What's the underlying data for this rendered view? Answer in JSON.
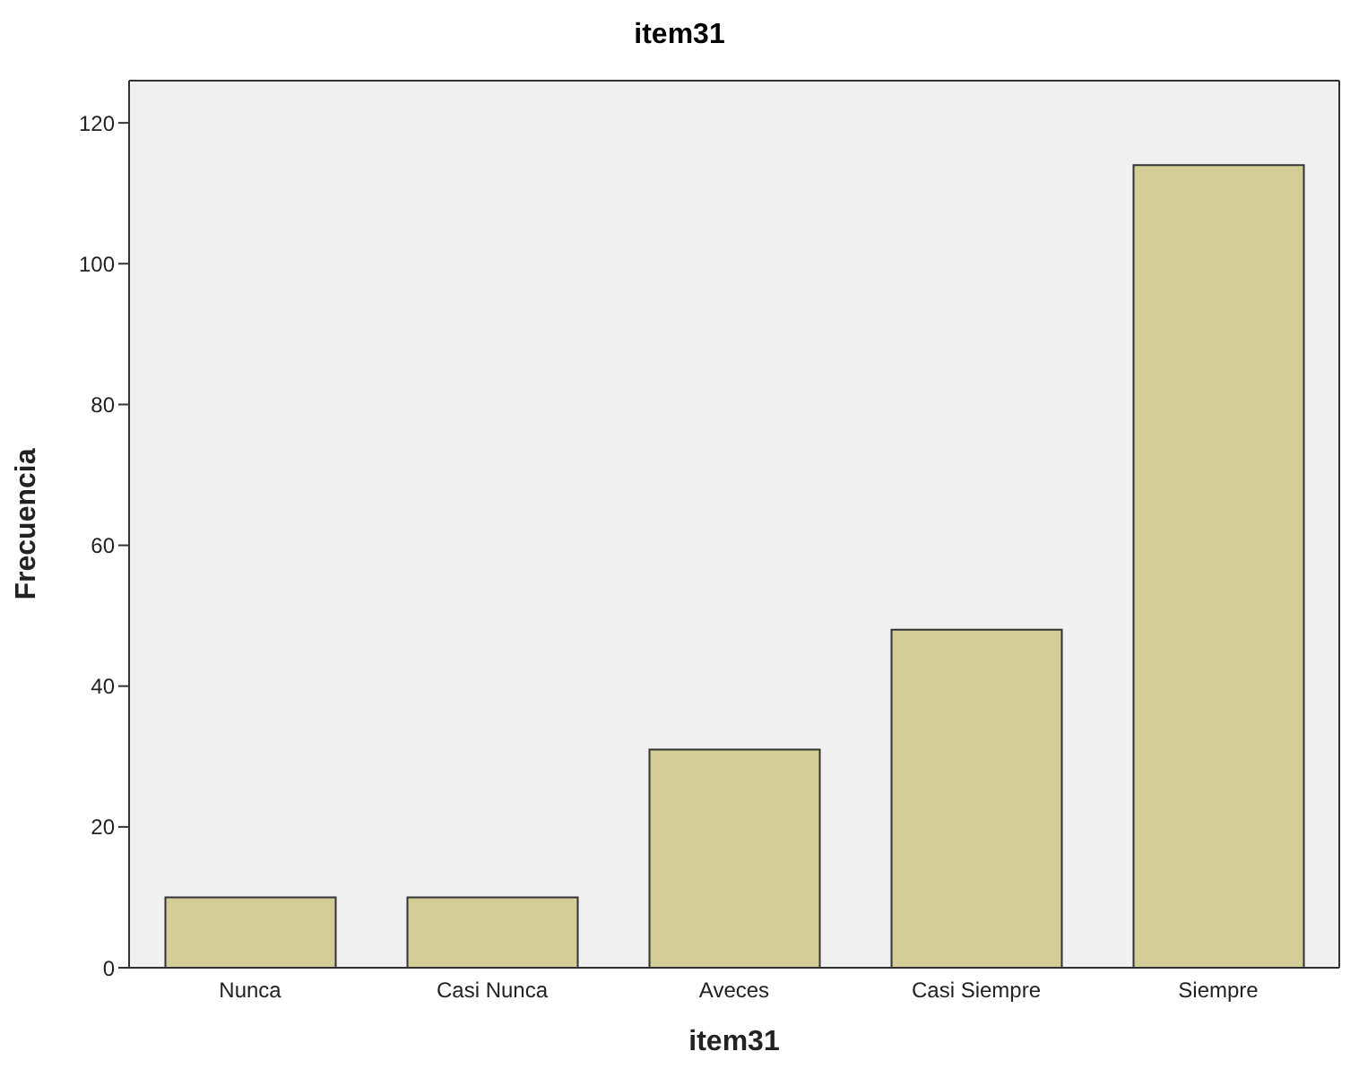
{
  "chart_data": {
    "type": "bar",
    "title": "item31",
    "xlabel": "item31",
    "ylabel": "Frecuencia",
    "categories": [
      "Nunca",
      "Casi Nunca",
      "Aveces",
      "Casi Siempre",
      "Siempre"
    ],
    "values": [
      10,
      10,
      31,
      48,
      114
    ],
    "color": "#d3ce97",
    "ylim": [
      0,
      126
    ],
    "yticks": [
      0,
      20,
      40,
      60,
      80,
      100,
      120
    ]
  }
}
